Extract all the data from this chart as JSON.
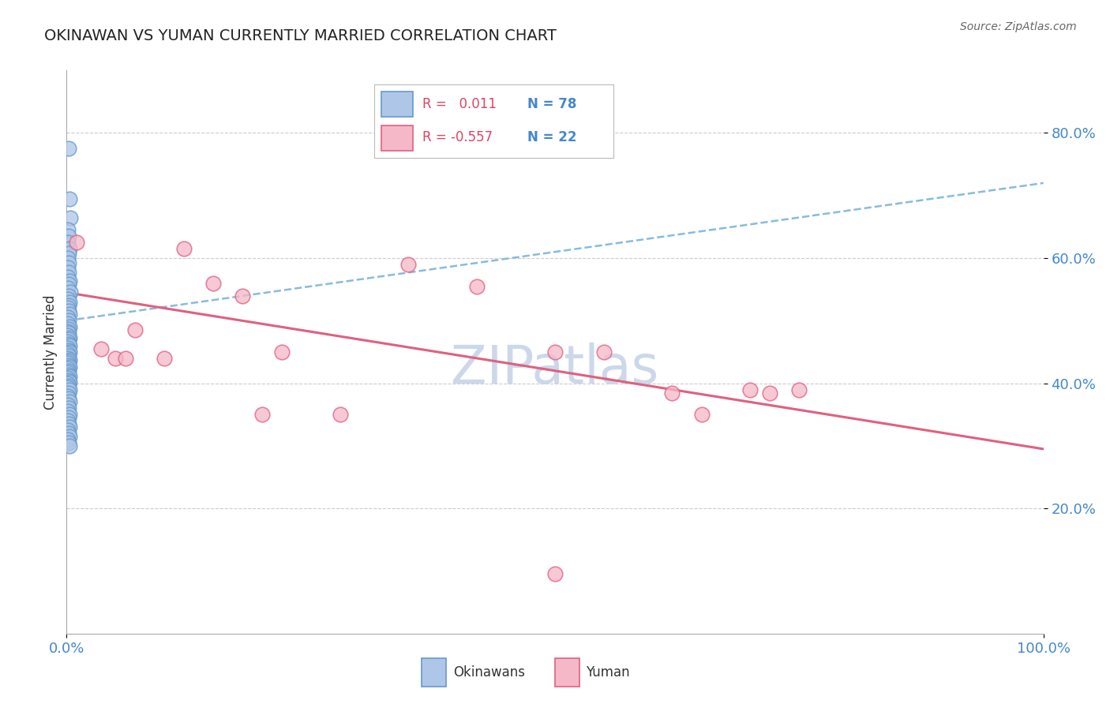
{
  "title": "OKINAWAN VS YUMAN CURRENTLY MARRIED CORRELATION CHART",
  "source": "Source: ZipAtlas.com",
  "ylabel_label": "Currently Married",
  "x_min": 0.0,
  "x_max": 1.0,
  "y_min": 0.0,
  "y_max": 0.9,
  "ytick_vals": [
    0.2,
    0.4,
    0.6,
    0.8
  ],
  "xtick_vals": [
    0.0,
    1.0
  ],
  "blue_label": "Okinawans",
  "pink_label": "Yuman",
  "R_blue": " 0.011",
  "N_blue": "78",
  "R_pink": "-0.557",
  "N_pink": "22",
  "blue_fill": "#aec6e8",
  "blue_edge": "#6699cc",
  "pink_fill": "#f5b8c8",
  "pink_edge": "#e06080",
  "blue_trend_color": "#88bbdd",
  "pink_trend_color": "#e06080",
  "blue_text_color": "#4488cc",
  "pink_text_color": "#dd4466",
  "tick_color": "#4488cc",
  "watermark_color": "#ccd8ea",
  "grid_color": "#cccccc",
  "blue_points_x": [
    0.002,
    0.003,
    0.004,
    0.001,
    0.002,
    0.001,
    0.003,
    0.002,
    0.001,
    0.002,
    0.001,
    0.002,
    0.001,
    0.003,
    0.002,
    0.001,
    0.004,
    0.002,
    0.001,
    0.003,
    0.002,
    0.001,
    0.002,
    0.003,
    0.001,
    0.002,
    0.001,
    0.003,
    0.002,
    0.001,
    0.002,
    0.001,
    0.003,
    0.002,
    0.001,
    0.002,
    0.003,
    0.001,
    0.002,
    0.003,
    0.001,
    0.002,
    0.001,
    0.003,
    0.002,
    0.001,
    0.002,
    0.003,
    0.001,
    0.002,
    0.001,
    0.002,
    0.003,
    0.001,
    0.002,
    0.003,
    0.001,
    0.002,
    0.001,
    0.003,
    0.002,
    0.001,
    0.002,
    0.003,
    0.001,
    0.002,
    0.001,
    0.003,
    0.002,
    0.001,
    0.002,
    0.003,
    0.001,
    0.002,
    0.003,
    0.001,
    0.002,
    0.003
  ],
  "blue_points_y": [
    0.775,
    0.695,
    0.665,
    0.645,
    0.635,
    0.625,
    0.615,
    0.608,
    0.6,
    0.592,
    0.585,
    0.578,
    0.57,
    0.563,
    0.558,
    0.552,
    0.546,
    0.54,
    0.535,
    0.53,
    0.525,
    0.52,
    0.515,
    0.51,
    0.505,
    0.5,
    0.495,
    0.49,
    0.487,
    0.483,
    0.48,
    0.476,
    0.473,
    0.47,
    0.467,
    0.463,
    0.46,
    0.456,
    0.453,
    0.45,
    0.447,
    0.444,
    0.44,
    0.437,
    0.435,
    0.432,
    0.429,
    0.426,
    0.423,
    0.42,
    0.417,
    0.414,
    0.411,
    0.408,
    0.405,
    0.402,
    0.399,
    0.396,
    0.393,
    0.39,
    0.385,
    0.38,
    0.375,
    0.37,
    0.365,
    0.36,
    0.355,
    0.35,
    0.345,
    0.34,
    0.335,
    0.33,
    0.325,
    0.32,
    0.315,
    0.31,
    0.305,
    0.3
  ],
  "pink_points_x": [
    0.01,
    0.035,
    0.05,
    0.06,
    0.07,
    0.1,
    0.12,
    0.15,
    0.18,
    0.2,
    0.22,
    0.28,
    0.35,
    0.42,
    0.5,
    0.55,
    0.62,
    0.65,
    0.7,
    0.72,
    0.75,
    0.5
  ],
  "pink_points_y": [
    0.625,
    0.455,
    0.44,
    0.44,
    0.485,
    0.44,
    0.615,
    0.56,
    0.54,
    0.35,
    0.45,
    0.35,
    0.59,
    0.555,
    0.45,
    0.45,
    0.385,
    0.35,
    0.39,
    0.385,
    0.39,
    0.095
  ],
  "blue_trend_x": [
    0.0,
    1.0
  ],
  "blue_trend_y": [
    0.5,
    0.72
  ],
  "pink_trend_x": [
    0.0,
    1.0
  ],
  "pink_trend_y": [
    0.545,
    0.295
  ]
}
